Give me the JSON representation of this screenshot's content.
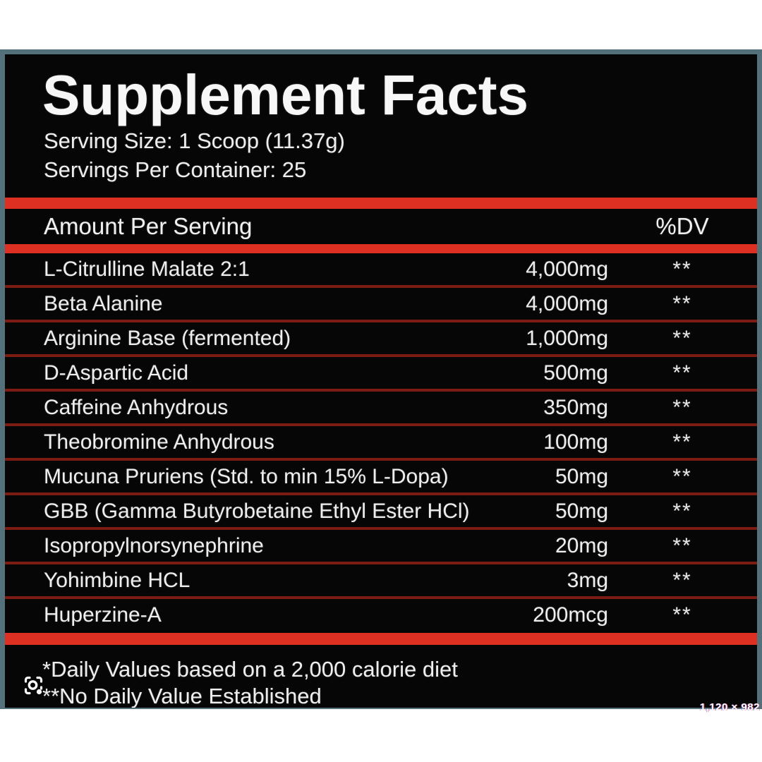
{
  "colors": {
    "panel_bg": "#060606",
    "frame": "#54707b",
    "accent_red": "#de2f23",
    "divider_red": "#7c1b12",
    "text": "#eeeeee"
  },
  "header": {
    "title": "Supplement Facts",
    "serving_size": "Serving Size: 1 Scoop (11.37g)",
    "servings_per_container": "Servings Per Container: 25"
  },
  "table": {
    "amount_header": "Amount Per Serving",
    "dv_header": "%DV",
    "rows": [
      {
        "name": "L-Citrulline Malate 2:1",
        "amount": "4,000mg",
        "dv": "**"
      },
      {
        "name": "Beta Alanine",
        "amount": "4,000mg",
        "dv": "**"
      },
      {
        "name": "Arginine Base (fermented)",
        "amount": "1,000mg",
        "dv": "**"
      },
      {
        "name": "D-Aspartic Acid",
        "amount": "500mg",
        "dv": "**"
      },
      {
        "name": "Caffeine Anhydrous",
        "amount": "350mg",
        "dv": "**"
      },
      {
        "name": "Theobromine Anhydrous",
        "amount": "100mg",
        "dv": "**"
      },
      {
        "name": "Mucuna Pruriens (Std. to min 15% L-Dopa)",
        "amount": "50mg",
        "dv": "**"
      },
      {
        "name": "GBB (Gamma Butyrobetaine Ethyl Ester HCl)",
        "amount": "50mg",
        "dv": "**"
      },
      {
        "name": "Isopropylnorsynephrine",
        "amount": "20mg",
        "dv": "**"
      },
      {
        "name": "Yohimbine HCL",
        "amount": "3mg",
        "dv": "**"
      },
      {
        "name": "Huperzine-A",
        "amount": "200mcg",
        "dv": "**"
      }
    ]
  },
  "footnotes": {
    "line1": "*Daily Values based on a 2,000 calorie diet",
    "line2": "**No Daily Value Established"
  },
  "overlay": {
    "lens_icon": "camera-lens-icon",
    "size_label": "1,120 × 982"
  }
}
